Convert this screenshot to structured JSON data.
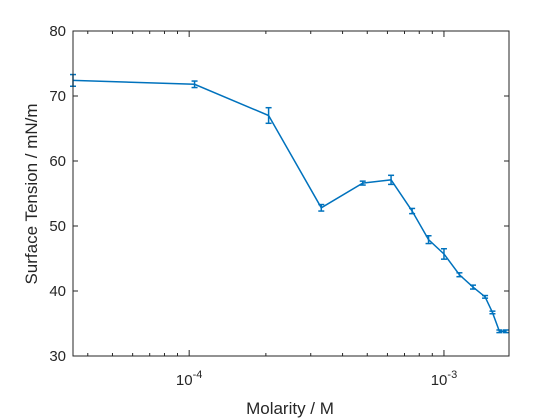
{
  "chart_data": {
    "type": "line",
    "xlabel": "Molarity / M",
    "ylabel": "Surface Tension / mN/m",
    "xscale": "log",
    "xlim": [
      3.5e-05,
      0.0018
    ],
    "ylim": [
      30,
      80
    ],
    "grid": false,
    "legend": "none",
    "line_color": "#0072BD",
    "axis_color": "#262626",
    "y_ticks": [
      30,
      40,
      50,
      60,
      70,
      80
    ],
    "y_tick_labels": [
      "30",
      "40",
      "50",
      "60",
      "70",
      "80"
    ],
    "x_major_ticks": [
      {
        "value": 0.0001,
        "base": "10",
        "exponent": "-4"
      },
      {
        "value": 0.001,
        "base": "10",
        "exponent": "-3"
      }
    ],
    "series": [
      {
        "x": [
          3.5e-05,
          0.000105,
          0.000205,
          0.00033,
          0.00048,
          0.00062,
          0.00075,
          0.00087,
          0.001,
          0.00115,
          0.0013,
          0.00145,
          0.00155,
          0.00165,
          0.00175
        ],
        "y": [
          72.4,
          71.8,
          67.0,
          52.8,
          56.6,
          57.1,
          52.3,
          47.9,
          45.7,
          42.5,
          40.6,
          39.1,
          36.7,
          33.8,
          33.8
        ],
        "err": [
          0.9,
          0.5,
          1.2,
          0.5,
          0.3,
          0.7,
          0.4,
          0.6,
          0.8,
          0.3,
          0.3,
          0.2,
          0.2,
          0.2,
          0.2
        ]
      }
    ]
  }
}
